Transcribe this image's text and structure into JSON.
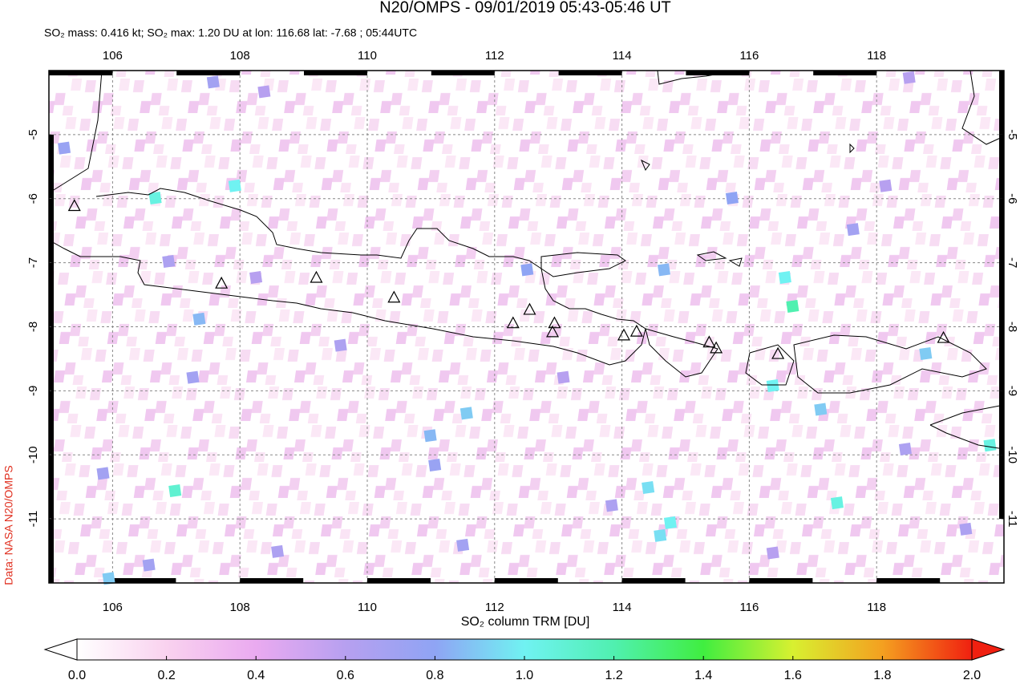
{
  "chart_data": {
    "type": "map",
    "title": "N20/OMPS - 09/01/2019 05:43-05:46 UT",
    "subtitle": "SO₂ mass: 0.416 kt; SO₂ max: 1.20 DU at lon: 116.68 lat: -7.68 ; 05:44UTC",
    "source": "Data: NASA N20/OMPS",
    "xlim": [
      105,
      120
    ],
    "ylim": [
      -12,
      -4
    ],
    "xticks": [
      106,
      108,
      110,
      112,
      114,
      116,
      118
    ],
    "yticks": [
      -5,
      -6,
      -7,
      -8,
      -9,
      -10,
      -11
    ],
    "grid": true,
    "colorbar": {
      "label": "SO₂ column TRM [DU]",
      "lim": [
        0,
        2
      ],
      "colors": [
        "#ffffff",
        "#f9d2ef",
        "#eaaaf0",
        "#b7a0f0",
        "#8fa4f4",
        "#70f2f2",
        "#50f0b0",
        "#40ee40",
        "#d8f030",
        "#f4a020",
        "#f02010"
      ],
      "ticks": [
        {
          "value": 0,
          "label": "0.0"
        },
        {
          "value": 0.2,
          "label": "0.2"
        },
        {
          "value": 0.4,
          "label": "0.4"
        },
        {
          "value": 0.6,
          "label": "0.6"
        },
        {
          "value": 0.8,
          "label": "0.8"
        },
        {
          "value": 1,
          "label": "1.0"
        },
        {
          "value": 1.2,
          "label": "1.2"
        },
        {
          "value": 1.4,
          "label": "1.4"
        },
        {
          "value": 1.6,
          "label": "1.6"
        },
        {
          "value": 1.8,
          "label": "1.8"
        },
        {
          "value": 2,
          "label": "2.0"
        }
      ]
    },
    "pixels": {
      "lon": [
        107.92,
        106.98,
        106.67,
        116.68,
        116.56,
        119.78,
        116.37,
        114.41,
        114.76,
        117.38,
        114.6,
        107.36,
        105.24,
        107.58,
        108.38,
        111.06,
        110.99,
        111.5,
        105.85,
        106.57,
        107.26,
        106.88,
        108.25,
        109.58,
        113.08,
        113.84,
        118.45,
        119.4,
        116.37,
        117.63,
        118.14,
        117.12,
        118.77,
        111.56,
        112.51,
        114.66,
        115.73,
        105.94,
        108.59,
        118.51
      ],
      "lat": [
        -5.8,
        -10.56,
        -5.99,
        -7.68,
        -7.23,
        -9.85,
        -8.92,
        -10.51,
        -11.06,
        -10.75,
        -11.26,
        -7.88,
        -5.21,
        -4.18,
        -4.33,
        -10.16,
        -9.7,
        -11.41,
        -10.29,
        -11.72,
        -8.79,
        -6.98,
        -7.23,
        -8.29,
        -8.79,
        -10.79,
        -9.91,
        -11.16,
        -11.53,
        -6.48,
        -5.8,
        -9.29,
        -8.42,
        -9.35,
        -7.11,
        -7.11,
        -5.99,
        -11.93,
        -11.51,
        -4.11
      ],
      "values": [
        1.0,
        1.1,
        1.05,
        1.2,
        1.0,
        1.05,
        1.0,
        0.95,
        1.0,
        1.05,
        0.95,
        0.85,
        0.75,
        0.7,
        0.6,
        0.75,
        0.85,
        0.7,
        0.7,
        0.7,
        0.7,
        0.65,
        0.6,
        0.65,
        0.6,
        0.65,
        0.65,
        0.65,
        0.6,
        0.7,
        0.6,
        0.9,
        0.9,
        0.9,
        0.8,
        0.85,
        0.8,
        0.9,
        0.65,
        0.6
      ]
    },
    "volcanoes": {
      "lon": [
        107.71,
        109.2,
        110.42,
        112.29,
        112.55,
        112.91,
        112.94,
        114.03,
        114.23,
        115.37,
        115.48,
        116.45,
        119.05,
        105.4
      ],
      "lat": [
        -7.32,
        -7.23,
        -7.54,
        -7.94,
        -7.73,
        -8.08,
        -7.94,
        -8.13,
        -8.07,
        -8.24,
        -8.33,
        -8.42,
        -8.17,
        -6.11
      ]
    }
  }
}
